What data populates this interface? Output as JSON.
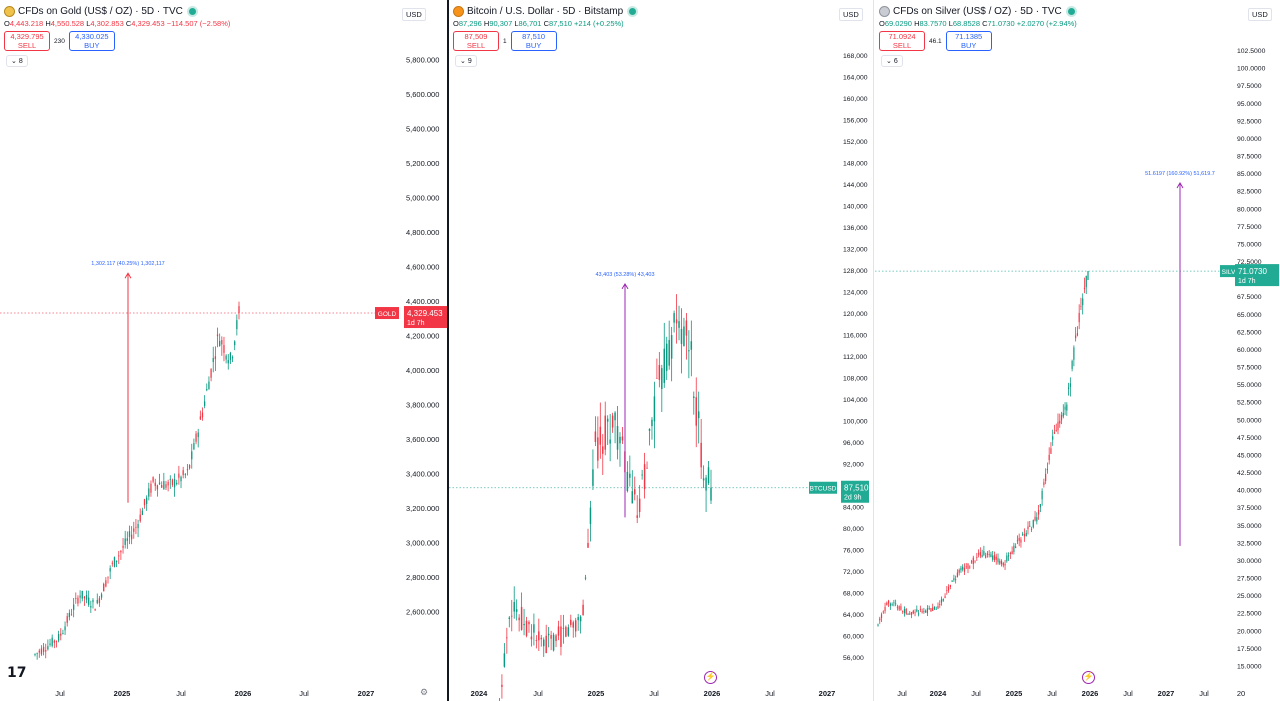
{
  "panels": [
    {
      "id": "gold",
      "title": "CFDs on Gold (US$ / OZ) · 5D · TVC",
      "icon": "gold-coin-icon",
      "ohlc": {
        "o": "4,443.218",
        "h": "4,550.528",
        "l": "4,302.853",
        "c": "4,329.453",
        "chg": "−114.507 (−2.58%)",
        "dir": "down"
      },
      "sell": {
        "price": "4,329.795",
        "label": "SELL"
      },
      "spread": "230",
      "buy": {
        "price": "4,330.025",
        "label": "BUY"
      },
      "collapse_count": "8",
      "currency": "USD",
      "price_label": {
        "tag": "GOLD",
        "value": "4,329.453",
        "countdown": "1d 7h",
        "color": "#f23645"
      },
      "y_ticks": [
        "5,800.000",
        "5,600.000",
        "5,400.000",
        "5,200.000",
        "5,000.000",
        "4,800.000",
        "4,600.000",
        "4,400.000",
        "4,200.000",
        "4,000.000",
        "3,800.000",
        "3,600.000",
        "3,400.000",
        "3,200.000",
        "3,000.000",
        "2,800.000",
        "2,600.000"
      ],
      "x_ticks": [
        "Jul",
        "2025",
        "Jul",
        "2026",
        "Jul",
        "2027"
      ],
      "measure_label": "1,302.117 (40.25%) 1,302,117",
      "measure_color": "#f23645",
      "logo": "17",
      "settings_icon": "gear-icon",
      "chart_data": {
        "type": "candlestick",
        "yrange": [
          2400,
          5900
        ],
        "last": 4329.453,
        "series": "gold-5d-candles"
      }
    },
    {
      "id": "btc",
      "title": "Bitcoin / U.S. Dollar · 5D · Bitstamp",
      "icon": "bitcoin-icon",
      "ohlc": {
        "o": "87,296",
        "h": "90,307",
        "l": "86,701",
        "c": "87,510",
        "chg": "+214 (+0.25%)",
        "dir": "up"
      },
      "sell": {
        "price": "87,509",
        "label": "SELL"
      },
      "spread": "1",
      "buy": {
        "price": "87,510",
        "label": "BUY"
      },
      "collapse_count": "9",
      "currency": "USD",
      "price_label": {
        "tag": "BTCUSD",
        "value": "87,510",
        "countdown": "2d 9h",
        "color": "#22ab94"
      },
      "y_ticks": [
        "168,000",
        "164,000",
        "160,000",
        "156,000",
        "152,000",
        "148,000",
        "144,000",
        "140,000",
        "136,000",
        "132,000",
        "128,000",
        "124,000",
        "120,000",
        "116,000",
        "112,000",
        "108,000",
        "104,000",
        "100,000",
        "96,000",
        "92,000",
        "84,000",
        "80,000",
        "76,000",
        "72,000",
        "68,000",
        "64,000",
        "60,000",
        "56,000"
      ],
      "x_ticks": [
        "2024",
        "Jul",
        "2025",
        "Jul",
        "2026",
        "Jul",
        "2027"
      ],
      "measure_label": "43,403 (53.28%) 43,403",
      "measure_color": "#9c27b0",
      "chart_data": {
        "type": "candlestick",
        "yrange": [
          54000,
          170000
        ],
        "last": 87510
      }
    },
    {
      "id": "silver",
      "title": "CFDs on Silver (US$ / OZ) · 5D · TVC",
      "icon": "silver-coin-icon",
      "ohlc": {
        "o": "69.0290",
        "h": "83.7570",
        "l": "68.8528",
        "c": "71.0730",
        "chg": "+2.0270 (+2.94%)",
        "dir": "up"
      },
      "sell": {
        "price": "71.0924",
        "label": "SELL"
      },
      "spread": "46.1",
      "buy": {
        "price": "71.1385",
        "label": "BUY"
      },
      "collapse_count": "6",
      "currency": "USD",
      "price_label": {
        "tag": "SILVER",
        "value": "71.0730",
        "countdown": "1d 7h",
        "color": "#22ab94"
      },
      "y_ticks": [
        "102.5000",
        "100.0000",
        "97.5000",
        "95.0000",
        "92.5000",
        "90.0000",
        "87.5000",
        "85.0000",
        "82.5000",
        "80.0000",
        "77.5000",
        "75.0000",
        "72.5000",
        "67.5000",
        "65.0000",
        "62.5000",
        "60.0000",
        "57.5000",
        "55.0000",
        "52.5000",
        "50.0000",
        "47.5000",
        "45.0000",
        "42.5000",
        "40.0000",
        "37.5000",
        "35.0000",
        "32.5000",
        "30.0000",
        "27.5000",
        "25.0000",
        "22.5000",
        "20.0000",
        "17.5000",
        "15.0000"
      ],
      "x_ticks": [
        "Jul",
        "2024",
        "Jul",
        "2025",
        "Jul",
        "2026",
        "Jul",
        "2027",
        "Jul",
        "20"
      ],
      "measure_label": "51.6197 (160.92%) 51,619.7",
      "measure_color": "#9c27b0",
      "chart_data": {
        "type": "candlestick",
        "yrange": [
          13.5,
          104.5
        ],
        "last": 71.073
      }
    }
  ]
}
